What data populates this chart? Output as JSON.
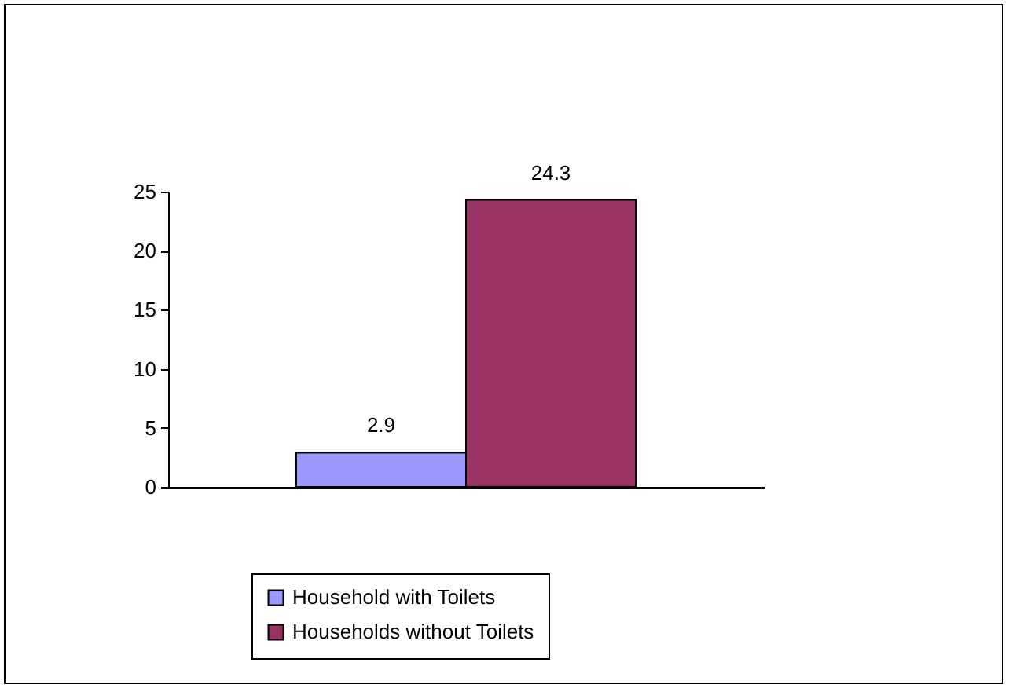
{
  "chart_data": {
    "type": "bar",
    "categories": [
      null
    ],
    "series": [
      {
        "name": "Household with Toilets",
        "color": "#9999ff",
        "values": [
          2.9
        ]
      },
      {
        "name": "Households without Toilets",
        "color": "#993366",
        "values": [
          24.3
        ]
      }
    ],
    "ylim": [
      0,
      25
    ],
    "yticks": [
      0,
      5,
      10,
      15,
      20,
      25
    ],
    "data_labels": true,
    "legend": "bottom",
    "grid": false
  }
}
